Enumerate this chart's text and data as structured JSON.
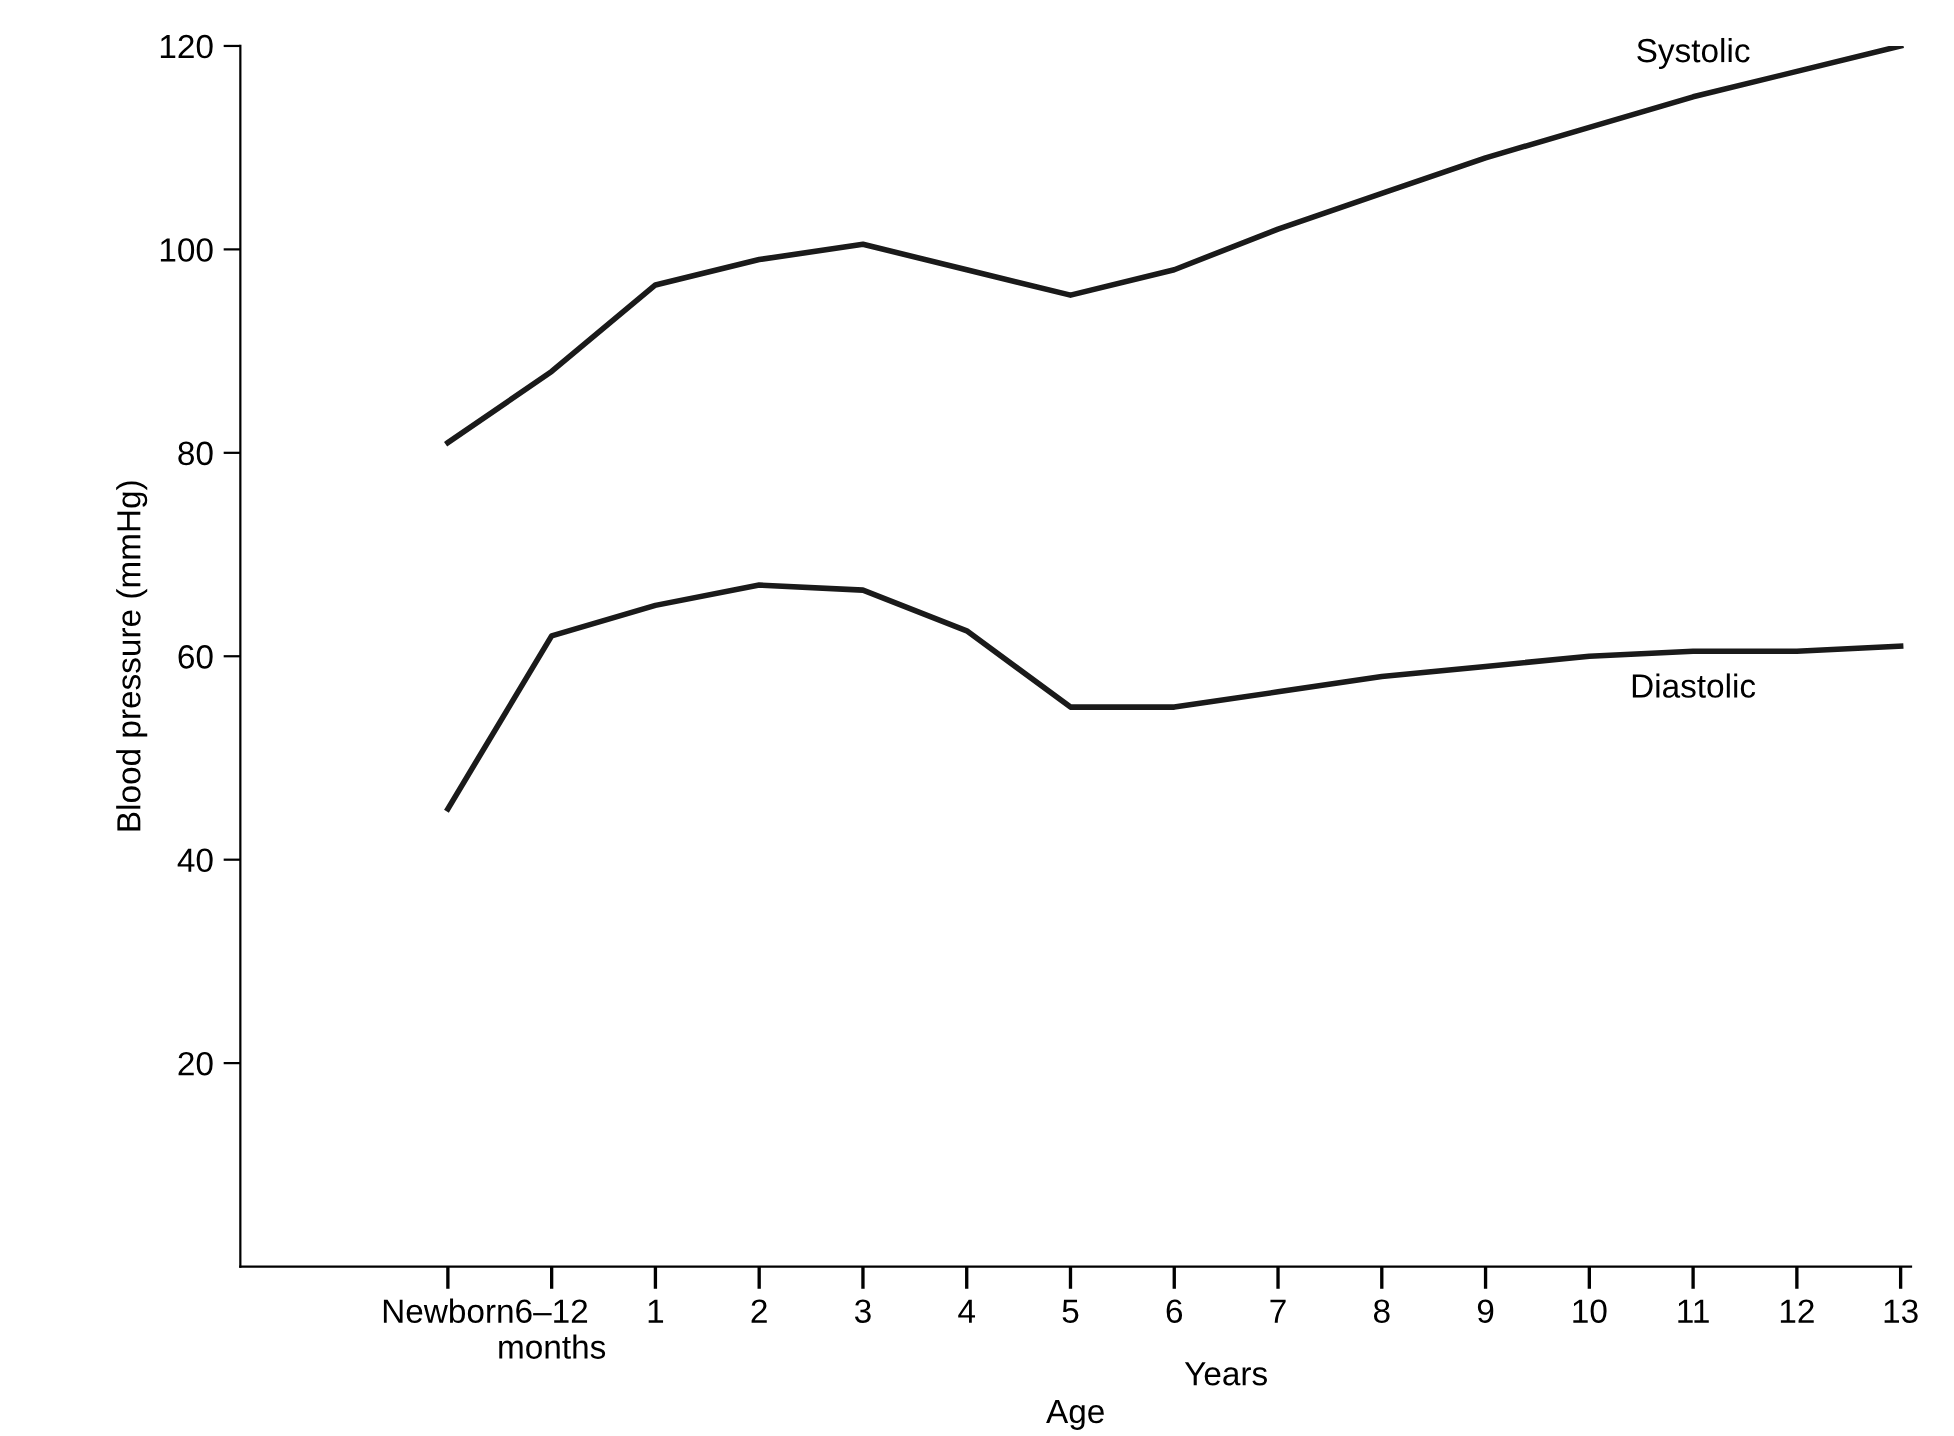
{
  "chart_data": {
    "type": "line",
    "xlabel": "Age",
    "ylabel": "Blood pressure (mmHg)",
    "categories": [
      "Newborn",
      "6–12\nmonths",
      "1",
      "2",
      "3",
      "4",
      "5",
      "6",
      "7",
      "8",
      "9",
      "10",
      "11",
      "12",
      "13"
    ],
    "series": [
      {
        "name": "Systolic",
        "color": "#1a1a1a",
        "values": [
          81,
          88,
          96.5,
          99,
          100.5,
          98,
          95.5,
          98,
          102,
          105.5,
          109,
          112,
          115,
          117.5,
          120
        ]
      },
      {
        "name": "Diastolic",
        "color": "#1a1a1a",
        "values": [
          45,
          62,
          65,
          67,
          66.5,
          62.5,
          55,
          55,
          56.5,
          58,
          59,
          60,
          60.5,
          60.5,
          61
        ]
      }
    ],
    "ylim": [
      0,
      120
    ],
    "yticks": [
      20,
      40,
      60,
      80,
      100,
      120
    ],
    "annotations": [
      "Years"
    ],
    "grid": false,
    "legend": false,
    "line_style": "solid",
    "marker": "none"
  }
}
